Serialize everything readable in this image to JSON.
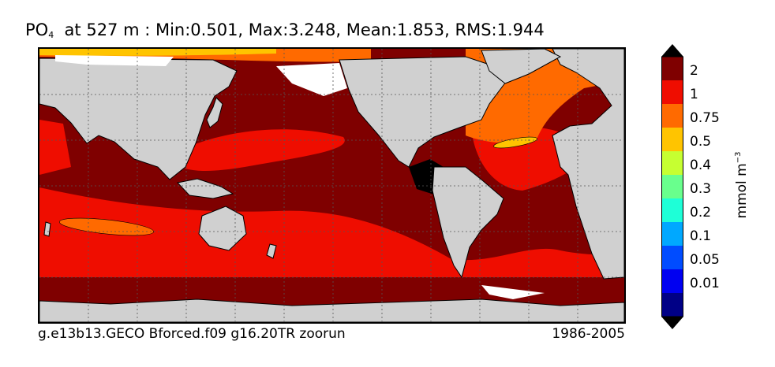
{
  "title": {
    "variable": "PO",
    "subscript": "4",
    "rest": "  at 527 m : Min:0.501, Max:3.248, Mean:1.853, RMS:1.944"
  },
  "footer": {
    "run_name": "g.e13b13.GECO Bforced.f09 g16.20TR zoorun",
    "period": "1986-2005"
  },
  "colorbar": {
    "unit_base": "mmol m",
    "unit_exponent": "−3",
    "labels": [
      "2",
      "1",
      "0.75",
      "0.5",
      "0.4",
      "0.3",
      "0.2",
      "0.1",
      "0.05",
      "0.01"
    ],
    "colors": [
      "#7f0000",
      "#ef0d00",
      "#ff6a00",
      "#ffc400",
      "#c6ff31",
      "#69ff8d",
      "#1effd7",
      "#00a8ff",
      "#004cff",
      "#0000f1",
      "#000086"
    ],
    "under_color": "#000000",
    "over_color": "#000000"
  },
  "map_colors": {
    "land": "#d0d0d0",
    "ice": "#ffffff",
    "missing": "#000000"
  }
}
